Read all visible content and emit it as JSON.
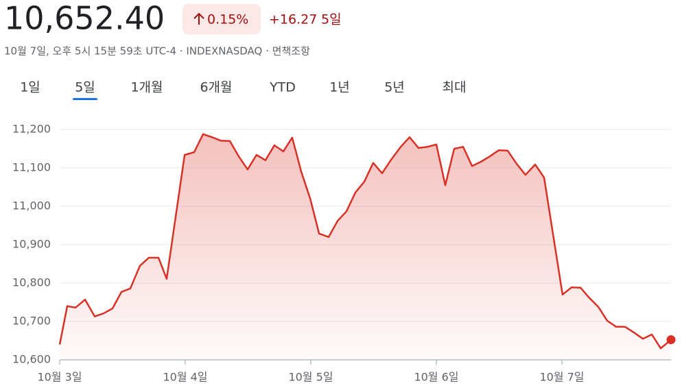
{
  "header": {
    "price": "10,652.40",
    "change_percent": "0.15%",
    "change": "+16.27",
    "period": "5일",
    "subtitle": "10월 7일, 오후 5시 15분 59초 UTC-4 · INDEXNASDAQ · 면책조항"
  },
  "tabs": {
    "items": [
      "1일",
      "5일",
      "1개월",
      "6개월",
      "YTD",
      "1년",
      "5년",
      "최대"
    ],
    "active": 1
  },
  "chart_data": {
    "type": "line",
    "color": "#d93025",
    "grid": true,
    "x": [
      0,
      0.06,
      0.126,
      0.202,
      0.279,
      0.35,
      0.421,
      0.492,
      0.563,
      0.639,
      0.71,
      0.787,
      0.852,
      0.995,
      1.071,
      1.142,
      1.213,
      1.284,
      1.355,
      1.426,
      1.497,
      1.568,
      1.639,
      1.71,
      1.781,
      1.852,
      1.923,
      1.995,
      2.066,
      2.142,
      2.213,
      2.284,
      2.355,
      2.426,
      2.497,
      2.568,
      2.639,
      2.716,
      2.787,
      2.858,
      2.929,
      3.0,
      3.071,
      3.142,
      3.213,
      3.284,
      3.355,
      3.426,
      3.497,
      3.568,
      3.639,
      3.71,
      3.787,
      3.858,
      4.005,
      4.077,
      4.148,
      4.219,
      4.29,
      4.361,
      4.432,
      4.503,
      4.574,
      4.645,
      4.716,
      4.787,
      4.869
    ],
    "values": [
      10640,
      10740,
      10736,
      10757,
      10713,
      10721,
      10734,
      10777,
      10786,
      10845,
      10866,
      10866,
      10811,
      11134,
      11141,
      11188,
      11180,
      11171,
      11170,
      11130,
      11096,
      11134,
      11120,
      11159,
      11143,
      11179,
      11091,
      11020,
      10929,
      10920,
      10962,
      10987,
      11036,
      11064,
      11113,
      11086,
      11121,
      11155,
      11180,
      11152,
      11155,
      11161,
      11055,
      11150,
      11155,
      11105,
      11116,
      11130,
      11146,
      11145,
      11111,
      11082,
      11109,
      11075,
      10770,
      10789,
      10788,
      10761,
      10738,
      10702,
      10686,
      10686,
      10671,
      10655,
      10666,
      10630,
      10652.4
    ],
    "xlim": [
      0,
      4.869
    ],
    "xticks": [
      {
        "value": 0,
        "label": "10월 3일"
      },
      {
        "value": 1,
        "label": "10월 4일"
      },
      {
        "value": 2,
        "label": "10월 5일"
      },
      {
        "value": 3,
        "label": "10월 6일"
      },
      {
        "value": 4,
        "label": "10월 7일"
      }
    ],
    "ylim": [
      10600,
      11200
    ],
    "yticks": [
      {
        "value": 10600,
        "label": "10,600"
      },
      {
        "value": 10700,
        "label": "10,700"
      },
      {
        "value": 10800,
        "label": "10,800"
      },
      {
        "value": 10900,
        "label": "10,900"
      },
      {
        "value": 11000,
        "label": "11,000"
      },
      {
        "value": 11100,
        "label": "11,100"
      },
      {
        "value": 11200,
        "label": "11,200"
      }
    ]
  }
}
